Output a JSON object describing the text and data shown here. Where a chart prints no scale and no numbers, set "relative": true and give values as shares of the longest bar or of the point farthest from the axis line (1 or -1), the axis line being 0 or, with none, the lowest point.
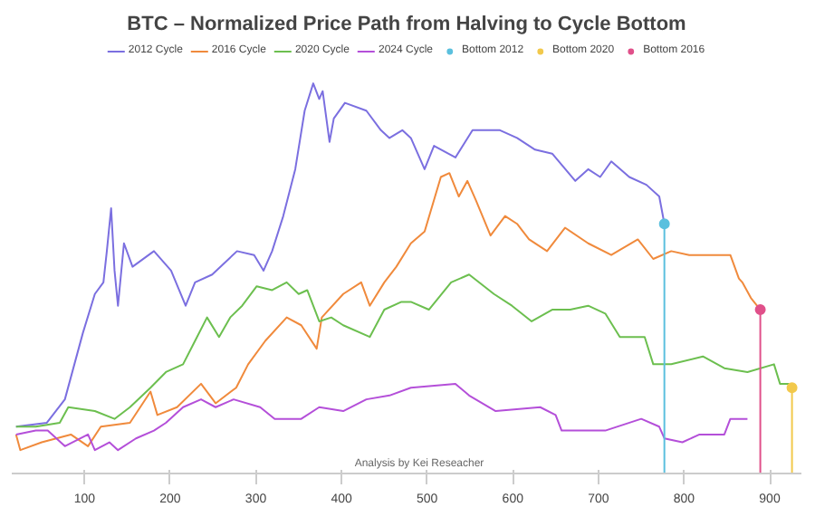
{
  "chart_data": {
    "type": "line",
    "title": "BTC – Normalized Price Path from Halving to Cycle Bottom",
    "relative": true,
    "xlim": [
      15,
      937
    ],
    "xticks": [
      100,
      200,
      300,
      400,
      500,
      600,
      700,
      800,
      900
    ],
    "legend": "top",
    "annotations": [
      "Analysis by Kei Reseacher"
    ],
    "series": [
      {
        "name": "2012 Cycle",
        "color": "#7b6fe0",
        "x": [
          20,
          56,
          77,
          98,
          112,
          122,
          126,
          131,
          135,
          139,
          146,
          156,
          181,
          201,
          218,
          229,
          249,
          278,
          298,
          309,
          319,
          332,
          346,
          357,
          367,
          374,
          378,
          386,
          391,
          404,
          429,
          446,
          456,
          471,
          481,
          497,
          508,
          533,
          553,
          585,
          605,
          626,
          646,
          673,
          688,
          702,
          715,
          736,
          756,
          771,
          777
        ],
        "values": [
          0.12,
          0.13,
          0.19,
          0.36,
          0.46,
          0.49,
          0.57,
          0.68,
          0.52,
          0.43,
          0.59,
          0.53,
          0.57,
          0.52,
          0.43,
          0.49,
          0.51,
          0.57,
          0.56,
          0.52,
          0.57,
          0.66,
          0.78,
          0.93,
          1.0,
          0.96,
          0.98,
          0.85,
          0.91,
          0.95,
          0.93,
          0.88,
          0.86,
          0.88,
          0.86,
          0.78,
          0.84,
          0.81,
          0.88,
          0.88,
          0.86,
          0.83,
          0.82,
          0.75,
          0.78,
          0.76,
          0.8,
          0.76,
          0.74,
          0.71,
          0.64
        ]
      },
      {
        "name": "2016 Cycle",
        "color": "#f08a3c",
        "x": [
          20,
          25,
          50,
          84,
          104,
          119,
          153,
          177,
          185,
          208,
          236,
          253,
          277,
          291,
          311,
          336,
          353,
          371,
          377,
          402,
          423,
          433,
          450,
          464,
          481,
          497,
          516,
          526,
          537,
          547,
          557,
          574,
          591,
          605,
          619,
          640,
          661,
          688,
          715,
          746,
          764,
          785,
          806,
          833,
          854,
          864,
          868,
          878,
          889
        ],
        "values": [
          0.1,
          0.06,
          0.08,
          0.1,
          0.07,
          0.12,
          0.13,
          0.21,
          0.15,
          0.17,
          0.23,
          0.18,
          0.22,
          0.28,
          0.34,
          0.4,
          0.38,
          0.32,
          0.4,
          0.46,
          0.49,
          0.43,
          0.49,
          0.53,
          0.59,
          0.62,
          0.76,
          0.77,
          0.71,
          0.75,
          0.7,
          0.61,
          0.66,
          0.64,
          0.6,
          0.57,
          0.63,
          0.59,
          0.56,
          0.6,
          0.55,
          0.57,
          0.56,
          0.56,
          0.56,
          0.5,
          0.49,
          0.45,
          0.42
        ]
      },
      {
        "name": "2020 Cycle",
        "color": "#6cbf4f",
        "x": [
          20,
          43,
          71,
          81,
          112,
          135,
          153,
          177,
          195,
          215,
          229,
          243,
          257,
          270,
          284,
          301,
          319,
          336,
          350,
          360,
          374,
          388,
          402,
          433,
          450,
          470,
          481,
          502,
          528,
          549,
          578,
          599,
          622,
          646,
          667,
          688,
          708,
          725,
          754,
          764,
          785,
          822,
          847,
          874,
          905,
          912,
          922,
          926
        ],
        "values": [
          0.12,
          0.12,
          0.13,
          0.17,
          0.16,
          0.14,
          0.17,
          0.22,
          0.26,
          0.28,
          0.34,
          0.4,
          0.35,
          0.4,
          0.43,
          0.48,
          0.47,
          0.49,
          0.46,
          0.47,
          0.39,
          0.4,
          0.38,
          0.35,
          0.42,
          0.44,
          0.44,
          0.42,
          0.49,
          0.51,
          0.46,
          0.43,
          0.39,
          0.42,
          0.42,
          0.43,
          0.41,
          0.35,
          0.35,
          0.28,
          0.28,
          0.3,
          0.27,
          0.26,
          0.28,
          0.23,
          0.23,
          0.22
        ]
      },
      {
        "name": "2024 Cycle",
        "color": "#b44fd9",
        "x": [
          20,
          43,
          57,
          77,
          104,
          112,
          129,
          139,
          160,
          181,
          195,
          215,
          236,
          253,
          274,
          305,
          322,
          353,
          374,
          402,
          429,
          456,
          481,
          533,
          549,
          580,
          632,
          650,
          657,
          688,
          708,
          750,
          771,
          777,
          798,
          818,
          847,
          854,
          868,
          874
        ],
        "values": [
          0.1,
          0.11,
          0.11,
          0.07,
          0.1,
          0.06,
          0.08,
          0.06,
          0.09,
          0.11,
          0.13,
          0.17,
          0.19,
          0.17,
          0.19,
          0.17,
          0.14,
          0.14,
          0.17,
          0.16,
          0.19,
          0.2,
          0.22,
          0.23,
          0.2,
          0.16,
          0.17,
          0.15,
          0.11,
          0.11,
          0.11,
          0.14,
          0.12,
          0.09,
          0.08,
          0.1,
          0.1,
          0.14,
          0.14,
          0.14
        ]
      },
      {
        "name": "Bottom 2012",
        "type": "scatter",
        "marker": "circle",
        "color": "#5bc0de",
        "x": [
          777
        ],
        "values": [
          0.64
        ]
      },
      {
        "name": "Bottom 2020",
        "type": "scatter",
        "marker": "circle",
        "color": "#f2c94c",
        "x": [
          926
        ],
        "values": [
          0.22
        ]
      },
      {
        "name": "Bottom 2016",
        "type": "scatter",
        "marker": "circle",
        "color": "#e0508a",
        "x": [
          889
        ],
        "values": [
          0.42
        ]
      }
    ],
    "ref_lines": [
      {
        "axis": "x",
        "value": 777,
        "color": "#5bc0de"
      },
      {
        "axis": "x",
        "value": 926,
        "color": "#f2c94c"
      },
      {
        "axis": "x",
        "value": 889,
        "color": "#e0508a"
      }
    ]
  }
}
